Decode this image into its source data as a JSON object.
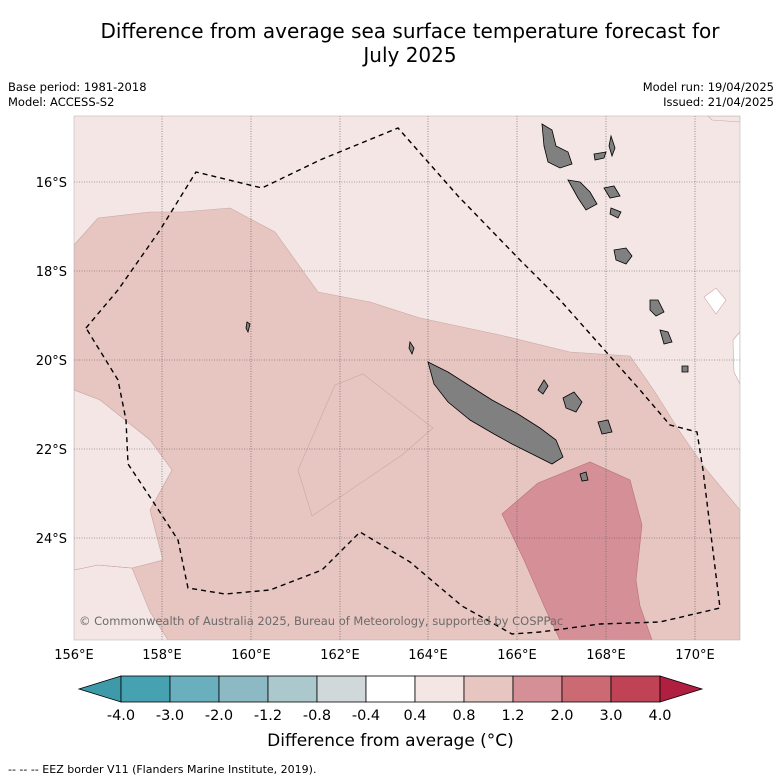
{
  "title": "Difference from average sea surface temperature forecast for July 2025",
  "title_lines": [
    "Difference from average sea surface temperature forecast for",
    "July 2025"
  ],
  "meta": {
    "base_period": "Base period: 1981-2018",
    "model": "Model: ACCESS-S2",
    "model_run": "Model run: 19/04/2025",
    "issued": "Issued: 21/04/2025"
  },
  "map": {
    "lat_ticks": [
      "16°S",
      "18°S",
      "20°S",
      "22°S",
      "24°S"
    ],
    "lon_ticks": [
      "156°E",
      "158°E",
      "160°E",
      "162°E",
      "164°E",
      "166°E",
      "168°E",
      "170°E"
    ],
    "copyright": "© Commonwealth of Australia 2025, Bureau of Meteorology, supported by COSPPac"
  },
  "colorbar": {
    "labels": [
      "-4.0",
      "-3.0",
      "-2.0",
      "-1.2",
      "-0.8",
      "-0.4",
      "0.4",
      "0.8",
      "1.2",
      "2.0",
      "3.0",
      "4.0"
    ],
    "colors": [
      "#3e9aa9",
      "#46a2b1",
      "#6aafbd",
      "#8db9c5",
      "#abc9cd",
      "#d0d8d9",
      "#ffffff",
      "#f4e6e5",
      "#e7c5c0",
      "#d58f97",
      "#cc6a73",
      "#bf4355",
      "#b11f40"
    ],
    "title": "Difference from average (°C)"
  },
  "footnote": "--  --  -- EEZ border V11 (Flanders Marine Institute, 2019)."
}
